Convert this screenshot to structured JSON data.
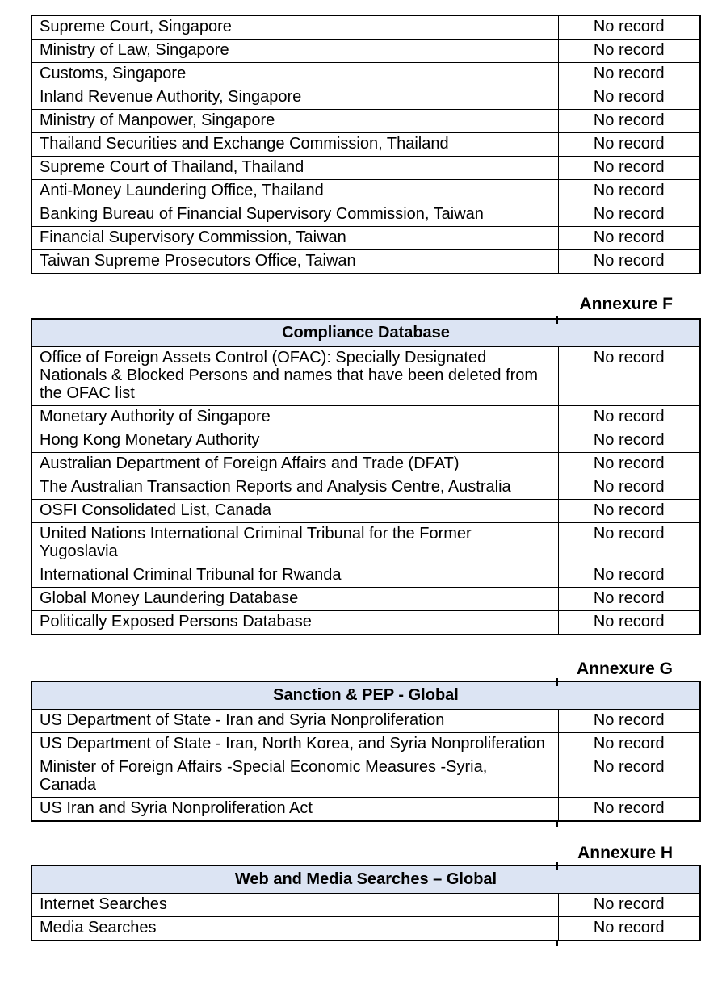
{
  "colors": {
    "table_header_bg": "#dce4f3",
    "table_border": "#000000",
    "text": "#000000",
    "page_background": "#ffffff"
  },
  "sections": [
    {
      "annexure_label": null,
      "table_title": null,
      "rows": [
        {
          "source": "Supreme Court, Singapore",
          "result": "No record"
        },
        {
          "source": "Ministry of Law, Singapore",
          "result": "No record"
        },
        {
          "source": "Customs, Singapore",
          "result": "No record"
        },
        {
          "source": "Inland Revenue Authority, Singapore",
          "result": "No record"
        },
        {
          "source": "Ministry of Manpower, Singapore",
          "result": "No record"
        },
        {
          "source": "Thailand Securities and Exchange Commission, Thailand",
          "result": "No record"
        },
        {
          "source": "Supreme Court of Thailand, Thailand",
          "result": "No record"
        },
        {
          "source": "Anti-Money Laundering Office, Thailand",
          "result": "No record"
        },
        {
          "source": "Banking Bureau of Financial Supervisory Commission, Taiwan",
          "result": "No record"
        },
        {
          "source": "Financial Supervisory Commission, Taiwan",
          "result": "No record"
        },
        {
          "source": "Taiwan Supreme Prosecutors Office, Taiwan",
          "result": "No record"
        }
      ]
    },
    {
      "annexure_label": "Annexure F",
      "table_title": "Compliance Database",
      "rows": [
        {
          "source": "Office of Foreign Assets Control (OFAC): Specially Designated Nationals & Blocked Persons and names that have been deleted from the OFAC list",
          "result": "No record"
        },
        {
          "source": "Monetary Authority of Singapore",
          "result": "No record"
        },
        {
          "source": "Hong Kong Monetary Authority",
          "result": "No record"
        },
        {
          "source": "Australian Department of Foreign Affairs and Trade (DFAT)",
          "result": "No record"
        },
        {
          "source": "The Australian Transaction Reports and Analysis Centre, Australia",
          "result": "No record"
        },
        {
          "source": "OSFI Consolidated List, Canada",
          "result": "No record"
        },
        {
          "source": "United Nations International Criminal Tribunal for the Former Yugoslavia",
          "result": "No record"
        },
        {
          "source": "International Criminal Tribunal for Rwanda",
          "result": "No record"
        },
        {
          "source": "Global Money Laundering Database",
          "result": "No record"
        },
        {
          "source": "Politically Exposed Persons Database",
          "result": "No record"
        }
      ]
    },
    {
      "annexure_label": "Annexure G",
      "table_title": "Sanction & PEP - Global",
      "rows": [
        {
          "source": "US Department of State - Iran and Syria Nonproliferation",
          "result": "No record"
        },
        {
          "source": "US Department of State - Iran, North Korea, and Syria Nonproliferation",
          "result": "No record"
        },
        {
          "source": "Minister of Foreign Affairs -Special Economic Measures -Syria, Canada",
          "result": "No record"
        },
        {
          "source": "US Iran and Syria Nonproliferation Act",
          "result": "No record"
        }
      ]
    },
    {
      "annexure_label": "Annexure H",
      "table_title": "Web and Media Searches – Global",
      "rows": [
        {
          "source": "Internet Searches",
          "result": "No record"
        },
        {
          "source": "Media Searches",
          "result": "No record"
        }
      ]
    }
  ]
}
